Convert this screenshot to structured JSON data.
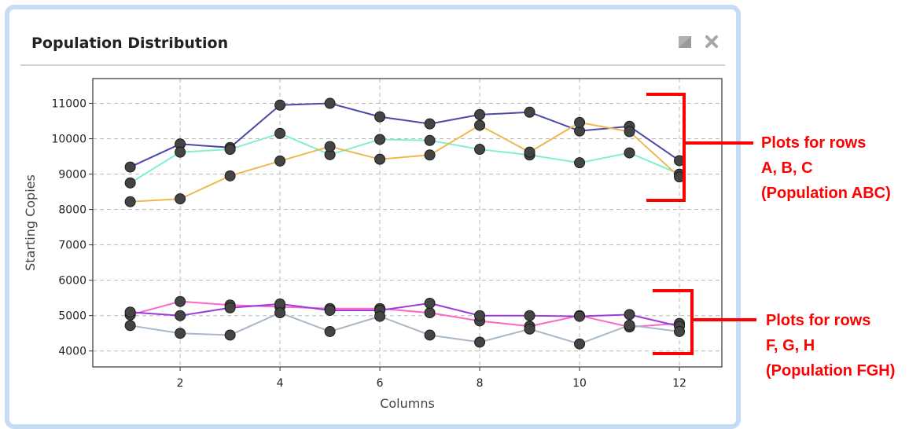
{
  "panel": {
    "title": "Population Distribution",
    "maximize_icon": "square-icon",
    "close_icon": "close-icon"
  },
  "chart_data": {
    "type": "line",
    "title": "",
    "xlabel": "Columns",
    "ylabel": "Starting Copies",
    "xlim": [
      0.25,
      12.85
    ],
    "ylim": [
      3550,
      11700
    ],
    "x_ticks": [
      2,
      4,
      6,
      8,
      10,
      12
    ],
    "y_ticks": [
      4000,
      5000,
      6000,
      7000,
      8000,
      9000,
      10000,
      11000
    ],
    "grid": true,
    "x": [
      1,
      2,
      3,
      4,
      5,
      6,
      7,
      8,
      9,
      10,
      11,
      12
    ],
    "series": [
      {
        "color": "#4a4aa8",
        "values": [
          9200,
          9850,
          9750,
          10950,
          11000,
          10620,
          10420,
          10680,
          10750,
          10220,
          10350,
          9380
        ]
      },
      {
        "color": "#80f0d0",
        "values": [
          8750,
          9620,
          9700,
          10150,
          9550,
          9980,
          9950,
          9700,
          9540,
          9320,
          9600,
          9000
        ]
      },
      {
        "color": "#f0b850",
        "values": [
          8220,
          8300,
          8950,
          9370,
          9780,
          9420,
          9540,
          10380,
          9620,
          10460,
          10200,
          8920
        ]
      },
      {
        "color": "#ff66c8",
        "values": [
          5020,
          5400,
          5300,
          5250,
          5200,
          5200,
          5080,
          4850,
          4700,
          5000,
          4680,
          4780
        ]
      },
      {
        "color": "#9a3cdc",
        "values": [
          5100,
          5000,
          5220,
          5330,
          5150,
          5150,
          5350,
          5000,
          5000,
          4980,
          5030,
          4700
        ]
      },
      {
        "color": "#a8b8c8",
        "values": [
          4720,
          4500,
          4450,
          5080,
          4550,
          4980,
          4450,
          4250,
          4620,
          4200,
          4730,
          4550
        ]
      }
    ],
    "marker_color": "#444444"
  },
  "annotations": [
    {
      "lines": [
        "Plots for rows",
        "A, B, C",
        "(Population ABC)"
      ],
      "color": "#ff0000"
    },
    {
      "lines": [
        "Plots for rows",
        "F, G, H",
        "(Population FGH)"
      ],
      "color": "#ff0000"
    }
  ]
}
